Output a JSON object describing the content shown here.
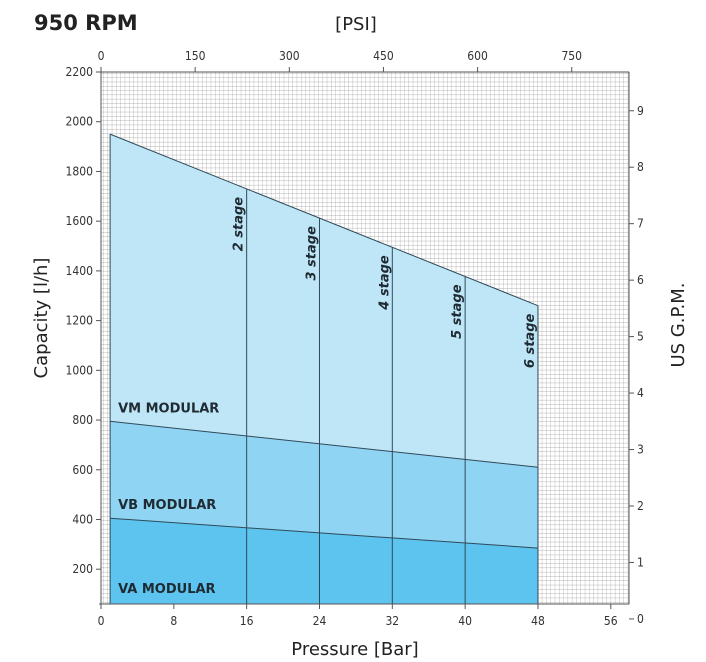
{
  "chart_data": {
    "type": "area",
    "title": "950 RPM",
    "xlabel": "Pressure [Bar]",
    "x2label": "[PSI]",
    "ylabel": "Capacity [l/h]",
    "y2label": "US G.P.M.",
    "xlim": [
      0,
      58
    ],
    "ylim": [
      60,
      2200
    ],
    "x_ticks": [
      0,
      8,
      16,
      24,
      32,
      40,
      48,
      56
    ],
    "y_ticks": [
      200,
      400,
      600,
      800,
      1000,
      1200,
      1400,
      1600,
      1800,
      2000,
      2200
    ],
    "x2_ticks": [
      0,
      150,
      300,
      450,
      600,
      750
    ],
    "y2_ticks": [
      0,
      1,
      2,
      3,
      4,
      5,
      6,
      7,
      8,
      9
    ],
    "grid": true,
    "series": [
      {
        "name": "VM MODULAR",
        "points": [
          [
            1,
            1950
          ],
          [
            48,
            1260
          ]
        ]
      },
      {
        "name": "VM MODULAR",
        "points": [
          [
            1,
            795
          ],
          [
            48,
            610
          ]
        ]
      },
      {
        "name": "VB MODULAR",
        "points": [
          [
            1,
            405
          ],
          [
            48,
            285
          ]
        ]
      }
    ],
    "band_labels": [
      "VM MODULAR",
      "VB MODULAR",
      "VA MODULAR"
    ],
    "stage_lines": [
      {
        "x": 16,
        "label": "2 stage"
      },
      {
        "x": 24,
        "label": "3 stage"
      },
      {
        "x": 32,
        "label": "4 stage"
      },
      {
        "x": 40,
        "label": "5 stage"
      },
      {
        "x": 48,
        "label": "6 stage"
      }
    ],
    "colors": {
      "upper_band": "#bfe6f7",
      "middle_band": "#8fd4f2",
      "lower_band": "#5cc4ee",
      "outline": "#2f4a5a",
      "grid": "#9a9a9a"
    }
  }
}
